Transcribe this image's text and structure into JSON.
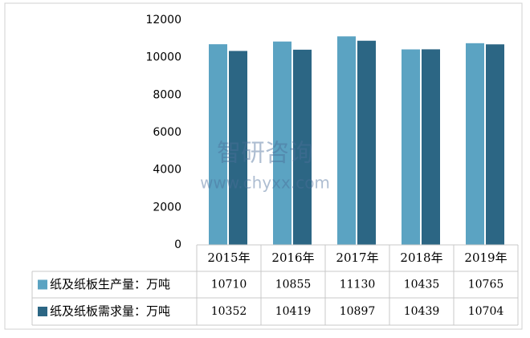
{
  "chart_data": {
    "type": "bar",
    "categories": [
      "2015年",
      "2016年",
      "2017年",
      "2018年",
      "2019年"
    ],
    "series": [
      {
        "name": "纸及纸板生产量：万吨",
        "color": "#5ba3c2",
        "values": [
          10710,
          10855,
          11130,
          10435,
          10765
        ]
      },
      {
        "name": "纸及纸板需求量：万吨",
        "color": "#2c6684",
        "values": [
          10352,
          10419,
          10897,
          10439,
          10704
        ]
      }
    ],
    "ylim": [
      0,
      12000
    ],
    "yticks": [
      0,
      2000,
      4000,
      6000,
      8000,
      10000,
      12000
    ],
    "grid": false,
    "watermark": {
      "brand": "智研咨询",
      "url": "www.chyxx.com"
    }
  }
}
